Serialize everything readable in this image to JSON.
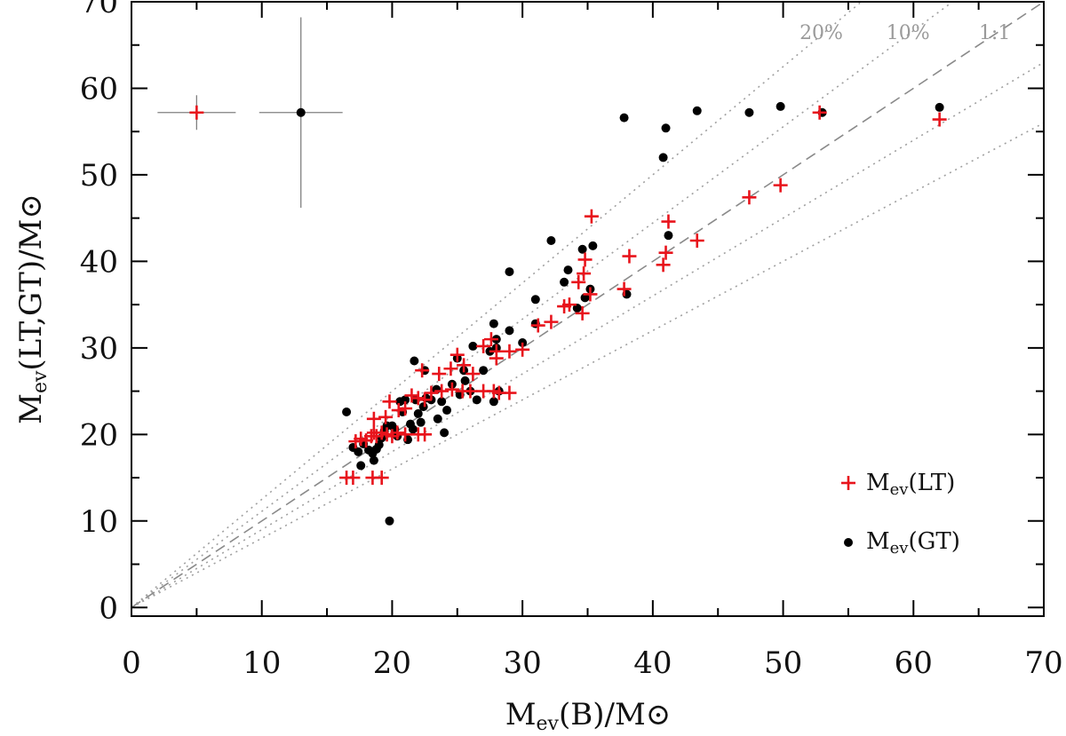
{
  "chart_data": {
    "type": "scatter",
    "xlabel": {
      "main": "M",
      "sub": "ev",
      "rest": "(B)/M",
      "sun": "⊙"
    },
    "ylabel": {
      "main": "M",
      "sub": "ev",
      "rest": "(LT,GT)/M",
      "sun": "⊙"
    },
    "xlim": [
      0,
      70
    ],
    "ylim": [
      -1,
      70
    ],
    "xticks": [
      0,
      10,
      20,
      30,
      40,
      50,
      60,
      70
    ],
    "yticks": [
      0,
      10,
      20,
      30,
      40,
      50,
      60,
      70
    ],
    "reference_lines": [
      {
        "label": "1:1",
        "slope": 1.0,
        "style": "dashed"
      },
      {
        "label": "10%",
        "slope": 1.111,
        "style": "dotted"
      },
      {
        "label": "20%",
        "slope": 1.25,
        "style": "dotted"
      },
      {
        "label": "",
        "slope": 0.9,
        "style": "dotted"
      },
      {
        "label": "",
        "slope": 0.8,
        "style": "dotted"
      }
    ],
    "series": [
      {
        "name": "M_ev(LT)",
        "legend": {
          "main": "M",
          "sub": "ev",
          "rest": "(LT)"
        },
        "marker": "plus",
        "color": "#e8141c",
        "points": [
          [
            16.5,
            15
          ],
          [
            17,
            15
          ],
          [
            18.5,
            15
          ],
          [
            19.2,
            15
          ],
          [
            17.2,
            19.2
          ],
          [
            17.6,
            19.5
          ],
          [
            18,
            19.3
          ],
          [
            18.4,
            19.8
          ],
          [
            18.6,
            20.2
          ],
          [
            18.8,
            19.8
          ],
          [
            19.2,
            20.2
          ],
          [
            19.6,
            20
          ],
          [
            20,
            19.8
          ],
          [
            20.4,
            20.2
          ],
          [
            21,
            20
          ],
          [
            22,
            20
          ],
          [
            22.5,
            20
          ],
          [
            18.6,
            21.8
          ],
          [
            19.5,
            22
          ],
          [
            20.5,
            22.8
          ],
          [
            21,
            23
          ],
          [
            19.8,
            23.8
          ],
          [
            21.5,
            24.5
          ],
          [
            22,
            24.2
          ],
          [
            22.5,
            24
          ],
          [
            23,
            24.8
          ],
          [
            23.8,
            25
          ],
          [
            24.6,
            25.2
          ],
          [
            25.4,
            25
          ],
          [
            26,
            25
          ],
          [
            27,
            25
          ],
          [
            27.8,
            25
          ],
          [
            28.2,
            24.8
          ],
          [
            29,
            24.8
          ],
          [
            22.3,
            27.4
          ],
          [
            23.6,
            27
          ],
          [
            24.5,
            27.6
          ],
          [
            25.5,
            28
          ],
          [
            26.2,
            27
          ],
          [
            25,
            29.2
          ],
          [
            27,
            30.2
          ],
          [
            27.6,
            31
          ],
          [
            28,
            29.6
          ],
          [
            28,
            28.8
          ],
          [
            30,
            29.8
          ],
          [
            29,
            29.6
          ],
          [
            31.2,
            32.6
          ],
          [
            32.2,
            33
          ],
          [
            33.2,
            34.8
          ],
          [
            33.6,
            35
          ],
          [
            34.6,
            34
          ],
          [
            35.2,
            36.2
          ],
          [
            34.3,
            37.6
          ],
          [
            34.7,
            38.6
          ],
          [
            34.8,
            40.2
          ],
          [
            35.3,
            45.2
          ],
          [
            37.8,
            36.8
          ],
          [
            38.2,
            40.6
          ],
          [
            40.8,
            39.6
          ],
          [
            41,
            41
          ],
          [
            41.2,
            44.6
          ],
          [
            43.4,
            42.4
          ],
          [
            47.4,
            47.4
          ],
          [
            49.8,
            48.8
          ],
          [
            52.8,
            57.2
          ],
          [
            62,
            56.4
          ]
        ]
      },
      {
        "name": "M_ev(GT)",
        "legend": {
          "main": "M",
          "sub": "ev",
          "rest": "(GT)"
        },
        "marker": "circle",
        "color": "#000000",
        "points": [
          [
            16.5,
            22.6
          ],
          [
            17,
            18.5
          ],
          [
            17.4,
            18
          ],
          [
            17.6,
            16.4
          ],
          [
            17.8,
            18.9
          ],
          [
            18.2,
            18.2
          ],
          [
            18.5,
            17.8
          ],
          [
            18.6,
            17
          ],
          [
            18.8,
            18.3
          ],
          [
            19,
            18.8
          ],
          [
            19.2,
            19.6
          ],
          [
            19.4,
            20.4
          ],
          [
            19.6,
            21
          ],
          [
            19.8,
            10
          ],
          [
            20,
            21
          ],
          [
            20.2,
            20.6
          ],
          [
            20.4,
            19.8
          ],
          [
            20.6,
            23.8
          ],
          [
            20.8,
            22.6
          ],
          [
            21,
            24
          ],
          [
            21.2,
            19.4
          ],
          [
            21.4,
            21.2
          ],
          [
            21.6,
            20.6
          ],
          [
            21.8,
            24
          ],
          [
            21.7,
            28.5
          ],
          [
            22,
            22.4
          ],
          [
            22.2,
            21.4
          ],
          [
            22.4,
            23.2
          ],
          [
            22.6,
            24.2
          ],
          [
            22.5,
            27.4
          ],
          [
            23,
            24
          ],
          [
            23.4,
            25.2
          ],
          [
            23.5,
            21.8
          ],
          [
            23.8,
            23.8
          ],
          [
            24,
            20.2
          ],
          [
            24.2,
            22.8
          ],
          [
            24.6,
            25.8
          ],
          [
            25,
            28.8
          ],
          [
            25.2,
            24.6
          ],
          [
            25.5,
            27.4
          ],
          [
            25.6,
            26.2
          ],
          [
            26,
            25
          ],
          [
            26.2,
            30.2
          ],
          [
            26.5,
            24
          ],
          [
            27,
            27.4
          ],
          [
            27.5,
            29.6
          ],
          [
            27.8,
            32.8
          ],
          [
            28,
            31
          ],
          [
            28,
            30
          ],
          [
            28.2,
            25
          ],
          [
            27.8,
            23.8
          ],
          [
            29,
            32
          ],
          [
            29,
            38.8
          ],
          [
            30,
            30.6
          ],
          [
            31,
            35.6
          ],
          [
            31,
            32.8
          ],
          [
            32.2,
            42.4
          ],
          [
            33.2,
            37.6
          ],
          [
            33.5,
            39
          ],
          [
            34.2,
            34.6
          ],
          [
            34.6,
            41.4
          ],
          [
            34.8,
            35.8
          ],
          [
            35.2,
            36.8
          ],
          [
            35.4,
            41.8
          ],
          [
            38,
            36.2
          ],
          [
            37.8,
            56.6
          ],
          [
            40.8,
            52
          ],
          [
            41,
            55.4
          ],
          [
            41.2,
            43
          ],
          [
            43.4,
            57.4
          ],
          [
            47.4,
            57.2
          ],
          [
            49.8,
            57.9
          ],
          [
            53,
            57.2
          ],
          [
            62,
            57.8
          ]
        ]
      }
    ],
    "error_bars": [
      {
        "marker": "plus",
        "color": "#e8141c",
        "x": 5,
        "y": 57.2,
        "xerr": 3,
        "yerr": 2
      },
      {
        "marker": "circle",
        "color": "#000000",
        "x": 13,
        "y": 57.2,
        "xerr": 3.2,
        "yerr": 11
      }
    ],
    "legend_position": "bottom-right"
  }
}
